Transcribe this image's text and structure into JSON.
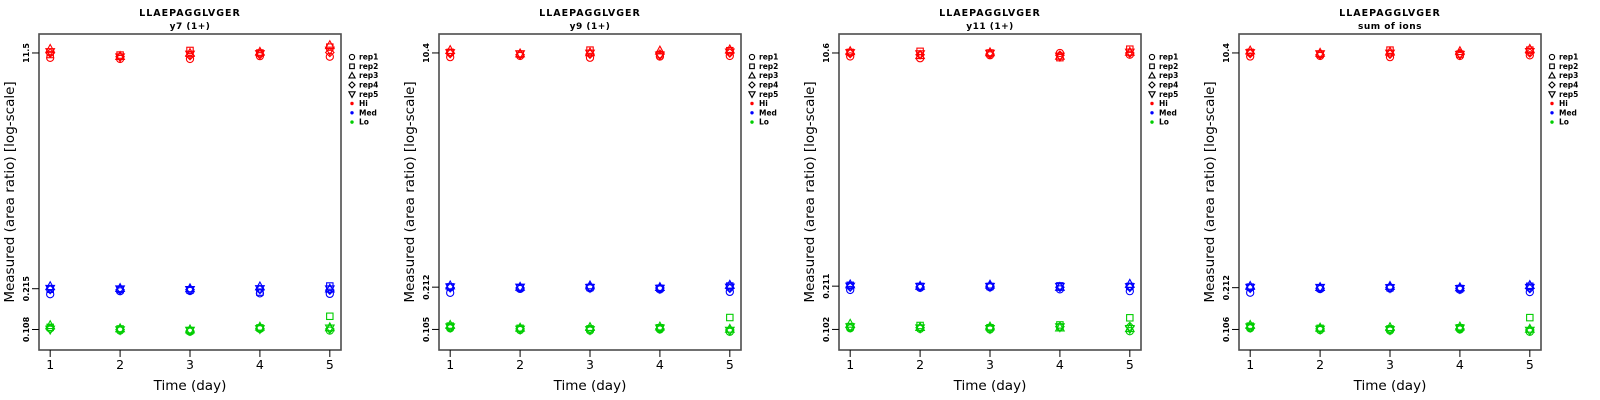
{
  "figure": {
    "background": "#ffffff",
    "frame_color": "#4d4d4d",
    "x_axis_label": "Time (day)",
    "y_axis_label": "Measured (area ratio) [log-scale]",
    "legend": {
      "reps": [
        {
          "label": "rep1",
          "symbol": "circle"
        },
        {
          "label": "rep2",
          "symbol": "square"
        },
        {
          "label": "rep3",
          "symbol": "triangle-up"
        },
        {
          "label": "rep4",
          "symbol": "diamond"
        },
        {
          "label": "rep5",
          "symbol": "triangle-down"
        }
      ],
      "levels": [
        {
          "label": "Hi",
          "color": "#ff0000"
        },
        {
          "label": "Med",
          "color": "#0000ff"
        },
        {
          "label": "Lo",
          "color": "#00cd00"
        }
      ]
    }
  },
  "chart_data": [
    {
      "type": "scatter",
      "title": "LLAEPAGGLVGER",
      "subtitle": "y7 (1+)",
      "xlabel": "Time (day)",
      "ylabel": "Measured (area ratio) [log-scale]",
      "x_ticks": [
        "1",
        "2",
        "3",
        "4",
        "5"
      ],
      "x": [
        1,
        2,
        3,
        4,
        5
      ],
      "xlim": [
        0.84,
        5.16
      ],
      "yscale": "log",
      "ylim": [
        0.0764,
        15.84
      ],
      "grid": false,
      "legend_position": "right-outside",
      "y_ticks": [
        {
          "value": 11.5,
          "label": "11.5"
        },
        {
          "value": 0.215,
          "label": "0.215"
        },
        {
          "value": 0.108,
          "label": "0.108"
        }
      ],
      "reps": [
        "rep1",
        "rep2",
        "rep3",
        "rep4",
        "rep5"
      ],
      "series": [
        {
          "name": "Hi",
          "color": "#ff0000",
          "values_by_day": [
            [
              10.6,
              11.2,
              12.3,
              11.5,
              11.7
            ],
            [
              10.4,
              11.1,
              10.9,
              10.8,
              10.7
            ],
            [
              10.4,
              12.0,
              11.5,
              11.0,
              11.2
            ],
            [
              10.9,
              11.5,
              11.7,
              11.2,
              11.3
            ],
            [
              10.8,
              12.7,
              13.1,
              11.6,
              12.0
            ]
          ]
        },
        {
          "name": "Med",
          "color": "#0000ff",
          "values_by_day": [
            [
              0.196,
              0.213,
              0.224,
              0.212,
              0.215
            ],
            [
              0.206,
              0.212,
              0.217,
              0.211,
              0.213
            ],
            [
              0.207,
              0.21,
              0.216,
              0.212,
              0.211
            ],
            [
              0.199,
              0.203,
              0.223,
              0.212,
              0.214
            ],
            [
              0.197,
              0.225,
              0.215,
              0.21,
              0.213
            ]
          ]
        },
        {
          "name": "Lo",
          "color": "#00cd00",
          "values_by_day": [
            [
              0.11,
              0.112,
              0.116,
              0.109,
              0.108
            ],
            [
              0.106,
              0.109,
              0.11,
              0.108,
              0.107
            ],
            [
              0.104,
              0.106,
              0.108,
              0.105,
              0.106
            ],
            [
              0.109,
              0.111,
              0.113,
              0.11,
              0.109
            ],
            [
              0.106,
              0.135,
              0.112,
              0.109,
              0.11
            ]
          ]
        }
      ]
    },
    {
      "type": "scatter",
      "title": "LLAEPAGGLVGER",
      "subtitle": "y9 (1+)",
      "xlabel": "Time (day)",
      "ylabel": "Measured (area ratio) [log-scale]",
      "x_ticks": [
        "1",
        "2",
        "3",
        "4",
        "5"
      ],
      "x": [
        1,
        2,
        3,
        4,
        5
      ],
      "xlim": [
        0.84,
        5.16
      ],
      "yscale": "log",
      "ylim": [
        0.0746,
        14.25
      ],
      "grid": false,
      "legend_position": "right-outside",
      "y_ticks": [
        {
          "value": 10.4,
          "label": "10.4"
        },
        {
          "value": 0.212,
          "label": "0.212"
        },
        {
          "value": 0.105,
          "label": "0.105"
        }
      ],
      "reps": [
        "rep1",
        "rep2",
        "rep3",
        "rep4",
        "rep5"
      ],
      "series": [
        {
          "name": "Hi",
          "color": "#ff0000",
          "values_by_day": [
            [
              9.7,
              10.5,
              10.9,
              10.3,
              10.4
            ],
            [
              9.9,
              10.2,
              10.3,
              10.1,
              10.2
            ],
            [
              9.6,
              10.9,
              10.5,
              10.2,
              10.3
            ],
            [
              9.8,
              10.1,
              10.8,
              10.2,
              10.0
            ],
            [
              9.9,
              10.8,
              11.0,
              10.4,
              10.5
            ]
          ]
        },
        {
          "name": "Med",
          "color": "#0000ff",
          "values_by_day": [
            [
              0.193,
              0.213,
              0.218,
              0.21,
              0.212
            ],
            [
              0.206,
              0.21,
              0.213,
              0.209,
              0.211
            ],
            [
              0.208,
              0.211,
              0.218,
              0.212,
              0.21
            ],
            [
              0.204,
              0.208,
              0.212,
              0.209,
              0.207
            ],
            [
              0.196,
              0.216,
              0.22,
              0.208,
              0.211
            ]
          ]
        },
        {
          "name": "Lo",
          "color": "#00cd00",
          "values_by_day": [
            [
              0.107,
              0.111,
              0.113,
              0.108,
              0.109
            ],
            [
              0.104,
              0.107,
              0.108,
              0.106,
              0.105
            ],
            [
              0.103,
              0.106,
              0.109,
              0.105,
              0.104
            ],
            [
              0.105,
              0.108,
              0.11,
              0.106,
              0.107
            ],
            [
              0.101,
              0.128,
              0.106,
              0.104,
              0.103
            ]
          ]
        }
      ]
    },
    {
      "type": "scatter",
      "title": "LLAEPAGGLVGER",
      "subtitle": "y11 (1+)",
      "xlabel": "Time (day)",
      "ylabel": "Measured (area ratio) [log-scale]",
      "x_ticks": [
        "1",
        "2",
        "3",
        "4",
        "5"
      ],
      "x": [
        1,
        2,
        3,
        4,
        5
      ],
      "xlim": [
        0.84,
        5.16
      ],
      "yscale": "log",
      "ylim": [
        0.0722,
        14.58
      ],
      "grid": false,
      "legend_position": "right-outside",
      "y_ticks": [
        {
          "value": 10.6,
          "label": "10.6"
        },
        {
          "value": 0.211,
          "label": "0.211"
        },
        {
          "value": 0.102,
          "label": "0.102"
        }
      ],
      "reps": [
        "rep1",
        "rep2",
        "rep3",
        "rep4",
        "rep5"
      ],
      "series": [
        {
          "name": "Hi",
          "color": "#ff0000",
          "values_by_day": [
            [
              10.0,
              10.7,
              10.9,
              10.5,
              10.6
            ],
            [
              9.7,
              10.9,
              10.2,
              10.3,
              10.4
            ],
            [
              10.2,
              10.6,
              10.7,
              10.4,
              10.5
            ],
            [
              10.6,
              9.8,
              10.1,
              10.2,
              10.0
            ],
            [
              10.3,
              11.3,
              10.8,
              10.6,
              10.7
            ]
          ]
        },
        {
          "name": "Med",
          "color": "#0000ff",
          "values_by_day": [
            [
              0.198,
              0.214,
              0.217,
              0.208,
              0.21
            ],
            [
              0.205,
              0.21,
              0.212,
              0.208,
              0.209
            ],
            [
              0.207,
              0.21,
              0.216,
              0.211,
              0.209
            ],
            [
              0.2,
              0.212,
              0.208,
              0.207,
              0.209
            ],
            [
              0.194,
              0.21,
              0.219,
              0.207,
              0.208
            ]
          ]
        },
        {
          "name": "Lo",
          "color": "#00cd00",
          "values_by_day": [
            [
              0.104,
              0.107,
              0.112,
              0.105,
              0.106
            ],
            [
              0.103,
              0.109,
              0.106,
              0.105,
              0.104
            ],
            [
              0.102,
              0.105,
              0.107,
              0.104,
              0.103
            ],
            [
              0.106,
              0.11,
              0.105,
              0.107,
              0.106
            ],
            [
              0.099,
              0.124,
              0.104,
              0.107,
              0.103
            ]
          ]
        }
      ]
    },
    {
      "type": "scatter",
      "title": "LLAEPAGGLVGER",
      "subtitle": "sum of ions",
      "xlabel": "Time (day)",
      "ylabel": "Measured (area ratio) [log-scale]",
      "x_ticks": [
        "1",
        "2",
        "3",
        "4",
        "5"
      ],
      "x": [
        1,
        2,
        3,
        4,
        5
      ],
      "xlim": [
        0.84,
        5.16
      ],
      "yscale": "log",
      "ylim": [
        0.0754,
        14.24
      ],
      "grid": false,
      "legend_position": "right-outside",
      "y_ticks": [
        {
          "value": 10.4,
          "label": "10.4"
        },
        {
          "value": 0.212,
          "label": "0.212"
        },
        {
          "value": 0.106,
          "label": "0.106"
        }
      ],
      "reps": [
        "rep1",
        "rep2",
        "rep3",
        "rep4",
        "rep5"
      ],
      "series": [
        {
          "name": "Hi",
          "color": "#ff0000",
          "values_by_day": [
            [
              9.8,
              10.5,
              10.8,
              10.3,
              10.4
            ],
            [
              9.9,
              10.2,
              10.4,
              10.1,
              10.2
            ],
            [
              9.7,
              10.9,
              10.6,
              10.2,
              10.3
            ],
            [
              9.9,
              10.2,
              10.7,
              10.3,
              10.1
            ],
            [
              10.0,
              10.9,
              11.1,
              10.4,
              10.6
            ]
          ]
        },
        {
          "name": "Med",
          "color": "#0000ff",
          "values_by_day": [
            [
              0.195,
              0.214,
              0.218,
              0.21,
              0.212
            ],
            [
              0.207,
              0.211,
              0.214,
              0.21,
              0.212
            ],
            [
              0.209,
              0.212,
              0.218,
              0.213,
              0.211
            ],
            [
              0.205,
              0.209,
              0.213,
              0.21,
              0.208
            ],
            [
              0.197,
              0.217,
              0.221,
              0.209,
              0.212
            ]
          ]
        },
        {
          "name": "Lo",
          "color": "#00cd00",
          "values_by_day": [
            [
              0.108,
              0.112,
              0.114,
              0.109,
              0.11
            ],
            [
              0.105,
              0.108,
              0.109,
              0.107,
              0.106
            ],
            [
              0.104,
              0.107,
              0.11,
              0.106,
              0.105
            ],
            [
              0.106,
              0.109,
              0.111,
              0.107,
              0.108
            ],
            [
              0.102,
              0.129,
              0.107,
              0.105,
              0.104
            ]
          ]
        }
      ]
    }
  ]
}
